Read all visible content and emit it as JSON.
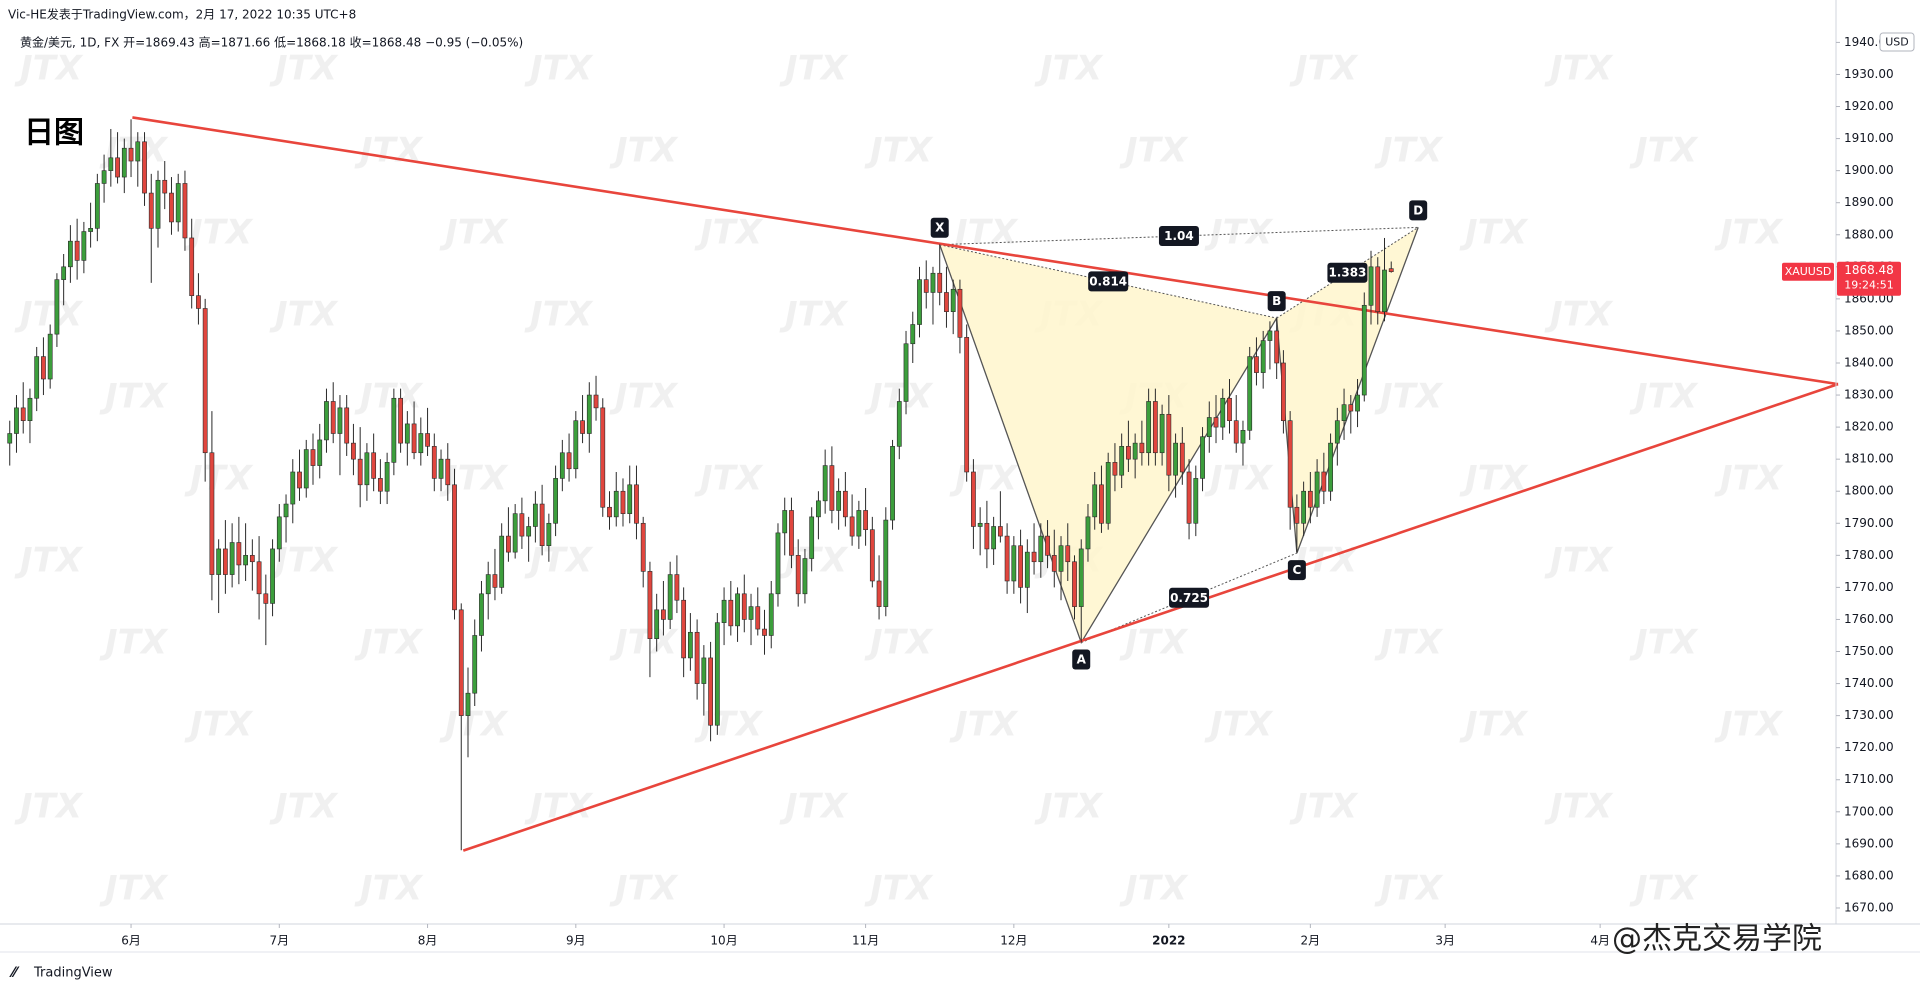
{
  "header": {
    "publisher": "Vic-HE发表于TradingView.com，2月 17, 2022 10:35 UTC+8",
    "symbol_line": "黄金/美元, 1D, FX  开=1869.43 高=1871.66 低=1868.18 收=1868.48 −0.95 (−0.05%)"
  },
  "watermark": "JTX",
  "brand": "TradingView",
  "author_mark": "@杰克交易学院",
  "chart_data": {
    "type": "candlestick",
    "title": "日图",
    "symbol": "XAUUSD",
    "countdown": "19:24:51",
    "currency": "USD",
    "up_color": "#3c9e3c",
    "down_color": "#e0463e",
    "grid": false,
    "ylim": [
      1665,
      1942
    ],
    "yticks": [
      {
        "value": 1670,
        "label": "1670.00"
      },
      {
        "value": 1680,
        "label": "1680.00"
      },
      {
        "value": 1690,
        "label": "1690.00"
      },
      {
        "value": 1700,
        "label": "1700.00"
      },
      {
        "value": 1710,
        "label": "1710.00"
      },
      {
        "value": 1720,
        "label": "1720.00"
      },
      {
        "value": 1730,
        "label": "1730.00"
      },
      {
        "value": 1740,
        "label": "1740.00"
      },
      {
        "value": 1750,
        "label": "1750.00"
      },
      {
        "value": 1760,
        "label": "1760.00"
      },
      {
        "value": 1770,
        "label": "1770.00"
      },
      {
        "value": 1780,
        "label": "1780.00"
      },
      {
        "value": 1790,
        "label": "1790.00"
      },
      {
        "value": 1800,
        "label": "1800.00"
      },
      {
        "value": 1810,
        "label": "1810.00"
      },
      {
        "value": 1820,
        "label": "1820.00"
      },
      {
        "value": 1830,
        "label": "1830.00"
      },
      {
        "value": 1840,
        "label": "1840.00"
      },
      {
        "value": 1850,
        "label": "1850.00"
      },
      {
        "value": 1860,
        "label": "1860.00"
      },
      {
        "value": 1870,
        "label": "1870.00"
      },
      {
        "value": 1880,
        "label": "1880.00"
      },
      {
        "value": 1890,
        "label": "1890.00"
      },
      {
        "value": 1900,
        "label": "1900.00"
      },
      {
        "value": 1910,
        "label": "1910.00"
      },
      {
        "value": 1920,
        "label": "1920.00"
      },
      {
        "value": 1930,
        "label": "1930.00"
      },
      {
        "value": 1940,
        "label": "1940.00"
      }
    ],
    "xlim": [
      -1,
      271
    ],
    "xticks": [
      {
        "value": 18,
        "label": "6月"
      },
      {
        "value": 40,
        "label": "7月"
      },
      {
        "value": 62,
        "label": "8月"
      },
      {
        "value": 84,
        "label": "9月"
      },
      {
        "value": 106,
        "label": "10月"
      },
      {
        "value": 127,
        "label": "11月"
      },
      {
        "value": 149,
        "label": "12月"
      },
      {
        "value": 172,
        "label": "2022"
      },
      {
        "value": 193,
        "label": "2月"
      },
      {
        "value": 213,
        "label": "3月"
      },
      {
        "value": 236,
        "label": "4月"
      }
    ],
    "ohlc": [
      [
        1815,
        1822,
        1808,
        1818
      ],
      [
        1818,
        1830,
        1812,
        1826
      ],
      [
        1826,
        1834,
        1818,
        1822
      ],
      [
        1822,
        1832,
        1815,
        1829
      ],
      [
        1829,
        1845,
        1825,
        1842
      ],
      [
        1842,
        1848,
        1830,
        1835
      ],
      [
        1835,
        1852,
        1832,
        1849
      ],
      [
        1849,
        1868,
        1845,
        1866
      ],
      [
        1866,
        1874,
        1858,
        1870
      ],
      [
        1870,
        1883,
        1865,
        1878
      ],
      [
        1878,
        1885,
        1866,
        1872
      ],
      [
        1872,
        1884,
        1868,
        1881
      ],
      [
        1881,
        1890,
        1876,
        1882
      ],
      [
        1882,
        1899,
        1878,
        1896
      ],
      [
        1896,
        1905,
        1890,
        1900
      ],
      [
        1900,
        1913,
        1895,
        1904
      ],
      [
        1904,
        1912,
        1896,
        1898
      ],
      [
        1898,
        1910,
        1893,
        1907
      ],
      [
        1907,
        1916,
        1898,
        1903
      ],
      [
        1903,
        1912,
        1895,
        1909
      ],
      [
        1909,
        1912,
        1889,
        1893
      ],
      [
        1893,
        1899,
        1865,
        1882
      ],
      [
        1882,
        1900,
        1876,
        1897
      ],
      [
        1897,
        1903,
        1888,
        1893
      ],
      [
        1893,
        1898,
        1880,
        1884
      ],
      [
        1884,
        1899,
        1881,
        1896
      ],
      [
        1896,
        1900,
        1875,
        1879
      ],
      [
        1879,
        1885,
        1857,
        1861
      ],
      [
        1861,
        1868,
        1852,
        1857
      ],
      [
        1857,
        1860,
        1803,
        1812
      ],
      [
        1812,
        1825,
        1766,
        1774
      ],
      [
        1774,
        1785,
        1762,
        1782
      ],
      [
        1782,
        1791,
        1768,
        1774
      ],
      [
        1774,
        1790,
        1770,
        1784
      ],
      [
        1784,
        1792,
        1771,
        1777
      ],
      [
        1777,
        1790,
        1772,
        1780
      ],
      [
        1780,
        1785,
        1769,
        1778
      ],
      [
        1778,
        1786,
        1760,
        1768
      ],
      [
        1768,
        1774,
        1752,
        1765
      ],
      [
        1765,
        1785,
        1761,
        1782
      ],
      [
        1782,
        1796,
        1778,
        1792
      ],
      [
        1792,
        1799,
        1784,
        1796
      ],
      [
        1796,
        1810,
        1790,
        1806
      ],
      [
        1806,
        1813,
        1797,
        1801
      ],
      [
        1801,
        1816,
        1798,
        1813
      ],
      [
        1813,
        1818,
        1802,
        1808
      ],
      [
        1808,
        1821,
        1804,
        1816
      ],
      [
        1816,
        1832,
        1812,
        1828
      ],
      [
        1828,
        1834,
        1815,
        1818
      ],
      [
        1818,
        1830,
        1805,
        1826
      ],
      [
        1826,
        1830,
        1811,
        1815
      ],
      [
        1815,
        1821,
        1805,
        1810
      ],
      [
        1810,
        1820,
        1795,
        1802
      ],
      [
        1802,
        1815,
        1797,
        1812
      ],
      [
        1812,
        1818,
        1800,
        1804
      ],
      [
        1804,
        1810,
        1796,
        1800
      ],
      [
        1800,
        1812,
        1796,
        1809
      ],
      [
        1809,
        1832,
        1805,
        1829
      ],
      [
        1829,
        1832,
        1812,
        1815
      ],
      [
        1815,
        1825,
        1808,
        1821
      ],
      [
        1821,
        1828,
        1810,
        1812
      ],
      [
        1812,
        1823,
        1808,
        1818
      ],
      [
        1818,
        1826,
        1811,
        1814
      ],
      [
        1814,
        1818,
        1800,
        1804
      ],
      [
        1804,
        1813,
        1800,
        1810
      ],
      [
        1810,
        1815,
        1797,
        1802
      ],
      [
        1802,
        1807,
        1760,
        1763
      ],
      [
        1763,
        1765,
        1688,
        1730
      ],
      [
        1730,
        1745,
        1717,
        1737
      ],
      [
        1737,
        1760,
        1733,
        1755
      ],
      [
        1755,
        1772,
        1750,
        1768
      ],
      [
        1768,
        1778,
        1760,
        1774
      ],
      [
        1774,
        1782,
        1766,
        1770
      ],
      [
        1770,
        1790,
        1768,
        1786
      ],
      [
        1786,
        1795,
        1778,
        1781
      ],
      [
        1781,
        1796,
        1779,
        1793
      ],
      [
        1793,
        1798,
        1782,
        1786
      ],
      [
        1786,
        1792,
        1778,
        1789
      ],
      [
        1789,
        1800,
        1784,
        1796
      ],
      [
        1796,
        1802,
        1780,
        1783
      ],
      [
        1783,
        1793,
        1778,
        1790
      ],
      [
        1790,
        1808,
        1786,
        1804
      ],
      [
        1804,
        1816,
        1800,
        1812
      ],
      [
        1812,
        1818,
        1803,
        1807
      ],
      [
        1807,
        1825,
        1804,
        1822
      ],
      [
        1822,
        1830,
        1815,
        1818
      ],
      [
        1818,
        1834,
        1812,
        1830
      ],
      [
        1830,
        1836,
        1822,
        1826
      ],
      [
        1826,
        1829,
        1792,
        1795
      ],
      [
        1795,
        1800,
        1788,
        1792
      ],
      [
        1792,
        1806,
        1789,
        1800
      ],
      [
        1800,
        1804,
        1789,
        1793
      ],
      [
        1793,
        1808,
        1790,
        1802
      ],
      [
        1802,
        1808,
        1785,
        1790
      ],
      [
        1790,
        1792,
        1770,
        1775
      ],
      [
        1775,
        1778,
        1742,
        1754
      ],
      [
        1754,
        1768,
        1750,
        1763
      ],
      [
        1763,
        1772,
        1755,
        1760
      ],
      [
        1760,
        1778,
        1757,
        1774
      ],
      [
        1774,
        1780,
        1762,
        1766
      ],
      [
        1766,
        1770,
        1742,
        1748
      ],
      [
        1748,
        1762,
        1744,
        1756
      ],
      [
        1756,
        1760,
        1735,
        1740
      ],
      [
        1740,
        1752,
        1730,
        1748
      ],
      [
        1748,
        1753,
        1722,
        1727
      ],
      [
        1727,
        1762,
        1724,
        1759
      ],
      [
        1759,
        1770,
        1752,
        1766
      ],
      [
        1766,
        1772,
        1755,
        1758
      ],
      [
        1758,
        1770,
        1753,
        1768
      ],
      [
        1768,
        1774,
        1756,
        1760
      ],
      [
        1760,
        1768,
        1752,
        1764
      ],
      [
        1764,
        1770,
        1755,
        1757
      ],
      [
        1757,
        1763,
        1749,
        1755
      ],
      [
        1755,
        1772,
        1751,
        1768
      ],
      [
        1768,
        1790,
        1764,
        1787
      ],
      [
        1787,
        1798,
        1780,
        1794
      ],
      [
        1794,
        1798,
        1776,
        1780
      ],
      [
        1780,
        1785,
        1764,
        1768
      ],
      [
        1768,
        1782,
        1765,
        1779
      ],
      [
        1779,
        1795,
        1775,
        1792
      ],
      [
        1792,
        1800,
        1785,
        1797
      ],
      [
        1797,
        1813,
        1793,
        1808
      ],
      [
        1808,
        1814,
        1790,
        1794
      ],
      [
        1794,
        1804,
        1788,
        1800
      ],
      [
        1800,
        1806,
        1789,
        1792
      ],
      [
        1792,
        1799,
        1783,
        1786
      ],
      [
        1786,
        1797,
        1782,
        1794
      ],
      [
        1794,
        1801,
        1783,
        1788
      ],
      [
        1788,
        1792,
        1770,
        1772
      ],
      [
        1772,
        1780,
        1760,
        1764
      ],
      [
        1764,
        1795,
        1761,
        1791
      ],
      [
        1791,
        1816,
        1788,
        1814
      ],
      [
        1814,
        1832,
        1810,
        1828
      ],
      [
        1828,
        1850,
        1824,
        1846
      ],
      [
        1846,
        1856,
        1840,
        1852
      ],
      [
        1852,
        1870,
        1848,
        1866
      ],
      [
        1866,
        1872,
        1857,
        1862
      ],
      [
        1862,
        1870,
        1852,
        1868
      ],
      [
        1868,
        1877,
        1858,
        1862
      ],
      [
        1862,
        1870,
        1851,
        1856
      ],
      [
        1856,
        1866,
        1849,
        1863
      ],
      [
        1863,
        1866,
        1843,
        1848
      ],
      [
        1848,
        1852,
        1803,
        1806
      ],
      [
        1806,
        1810,
        1782,
        1789
      ],
      [
        1789,
        1795,
        1780,
        1790
      ],
      [
        1790,
        1797,
        1776,
        1782
      ],
      [
        1782,
        1792,
        1777,
        1789
      ],
      [
        1789,
        1800,
        1784,
        1786
      ],
      [
        1786,
        1790,
        1768,
        1772
      ],
      [
        1772,
        1786,
        1768,
        1783
      ],
      [
        1783,
        1788,
        1765,
        1770
      ],
      [
        1770,
        1785,
        1762,
        1781
      ],
      [
        1781,
        1790,
        1774,
        1778
      ],
      [
        1778,
        1790,
        1773,
        1786
      ],
      [
        1786,
        1791,
        1776,
        1780
      ],
      [
        1780,
        1788,
        1770,
        1775
      ],
      [
        1775,
        1786,
        1766,
        1783
      ],
      [
        1783,
        1790,
        1772,
        1778
      ],
      [
        1778,
        1780,
        1760,
        1764
      ],
      [
        1764,
        1785,
        1753,
        1782
      ],
      [
        1782,
        1796,
        1778,
        1792
      ],
      [
        1792,
        1806,
        1788,
        1802
      ],
      [
        1802,
        1808,
        1787,
        1790
      ],
      [
        1790,
        1812,
        1788,
        1809
      ],
      [
        1809,
        1815,
        1800,
        1805
      ],
      [
        1805,
        1818,
        1801,
        1814
      ],
      [
        1814,
        1822,
        1806,
        1810
      ],
      [
        1810,
        1818,
        1804,
        1815
      ],
      [
        1815,
        1822,
        1808,
        1812
      ],
      [
        1812,
        1832,
        1808,
        1828
      ],
      [
        1828,
        1832,
        1808,
        1812
      ],
      [
        1812,
        1827,
        1808,
        1824
      ],
      [
        1824,
        1830,
        1800,
        1805
      ],
      [
        1805,
        1818,
        1798,
        1815
      ],
      [
        1815,
        1820,
        1802,
        1806
      ],
      [
        1806,
        1810,
        1785,
        1790
      ],
      [
        1790,
        1808,
        1786,
        1804
      ],
      [
        1804,
        1820,
        1800,
        1817
      ],
      [
        1817,
        1828,
        1812,
        1823
      ],
      [
        1823,
        1830,
        1815,
        1820
      ],
      [
        1820,
        1832,
        1816,
        1829
      ],
      [
        1829,
        1835,
        1818,
        1822
      ],
      [
        1822,
        1830,
        1812,
        1815
      ],
      [
        1815,
        1822,
        1808,
        1819
      ],
      [
        1819,
        1845,
        1816,
        1842
      ],
      [
        1842,
        1848,
        1833,
        1837
      ],
      [
        1837,
        1850,
        1832,
        1847
      ],
      [
        1847,
        1853,
        1838,
        1850
      ],
      [
        1850,
        1854,
        1835,
        1840
      ],
      [
        1840,
        1844,
        1818,
        1822
      ],
      [
        1822,
        1825,
        1788,
        1795
      ],
      [
        1795,
        1799,
        1781,
        1790
      ],
      [
        1790,
        1803,
        1786,
        1800
      ],
      [
        1800,
        1806,
        1790,
        1795
      ],
      [
        1795,
        1810,
        1792,
        1806
      ],
      [
        1806,
        1812,
        1796,
        1800
      ],
      [
        1800,
        1818,
        1797,
        1815
      ],
      [
        1815,
        1826,
        1808,
        1822
      ],
      [
        1822,
        1832,
        1816,
        1827
      ],
      [
        1827,
        1830,
        1818,
        1825
      ],
      [
        1825,
        1835,
        1820,
        1830
      ],
      [
        1830,
        1862,
        1828,
        1858
      ],
      [
        1858,
        1875,
        1852,
        1870
      ],
      [
        1870,
        1873,
        1852,
        1856
      ],
      [
        1856,
        1879,
        1853,
        1869
      ],
      [
        1869.43,
        1871.66,
        1868.18,
        1868.48
      ]
    ],
    "trendlines": [
      {
        "color": "#e8453c",
        "x": [
          18.2,
          271.3
        ],
        "y": [
          1916.6,
          1833.4
        ]
      },
      {
        "color": "#e8453c",
        "x": [
          67.3,
          271.3
        ],
        "y": [
          1687.9,
          1833.4
        ]
      }
    ],
    "pattern": {
      "fill": "#fff6cc",
      "points": [
        {
          "label": "X",
          "x": 138,
          "y": 1876.9
        },
        {
          "label": "A",
          "x": 159,
          "y": 1752.8
        },
        {
          "label": "B",
          "x": 188,
          "y": 1854
        },
        {
          "label": "C",
          "x": 191,
          "y": 1780.7
        },
        {
          "label": "D",
          "x": 209,
          "y": 1882.3
        }
      ],
      "ratios": [
        1.04,
        0.814,
        1.383,
        0.725
      ]
    }
  }
}
